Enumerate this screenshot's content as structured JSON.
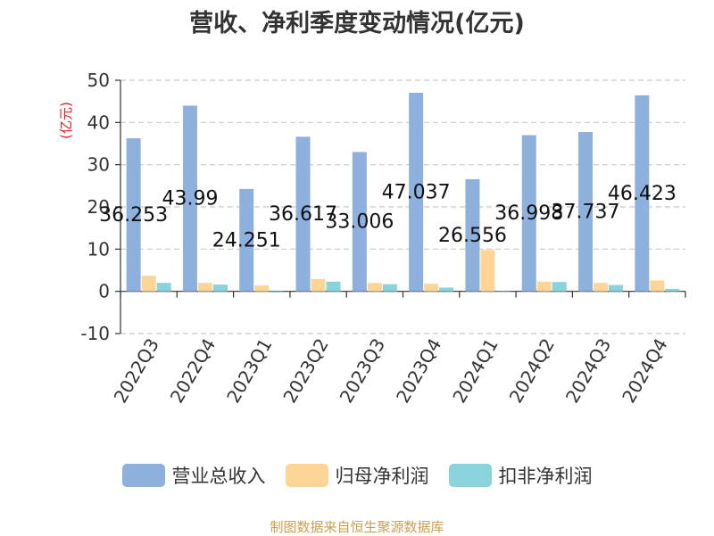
{
  "chart_data": {
    "type": "bar",
    "title": "营收、净利季度变动情况(亿元)",
    "ylabel": "(亿元)",
    "ylim": [
      -10,
      50
    ],
    "yticks": [
      -10,
      0,
      10,
      20,
      30,
      40,
      50
    ],
    "grid": true,
    "legend_position": "bottom",
    "categories": [
      "2022Q3",
      "2022Q4",
      "2023Q1",
      "2023Q2",
      "2023Q3",
      "2023Q4",
      "2024Q1",
      "2024Q2",
      "2024Q3",
      "2024Q4"
    ],
    "series": [
      {
        "name": "营业总收入",
        "color": "#8eb0dc",
        "values": [
          36.253,
          43.99,
          24.251,
          36.617,
          33.006,
          47.037,
          26.556,
          36.998,
          37.737,
          46.423
        ],
        "labels": [
          "36.253",
          "43.99",
          "24.251",
          "36.617",
          "33.006",
          "47.037",
          "26.556",
          "36.998",
          "37.737",
          "46.423"
        ]
      },
      {
        "name": "归母净利润",
        "color": "#fdd597",
        "values": [
          3.7,
          2.0,
          1.4,
          2.9,
          2.0,
          1.8,
          9.8,
          2.3,
          2.0,
          2.6
        ]
      },
      {
        "name": "扣非净利润",
        "color": "#89d3da",
        "values": [
          2.0,
          1.6,
          -0.3,
          2.3,
          1.7,
          0.9,
          -0.1,
          2.2,
          1.5,
          0.6
        ]
      }
    ]
  },
  "footer": {
    "source": "制图数据来自恒生聚源数据库"
  }
}
